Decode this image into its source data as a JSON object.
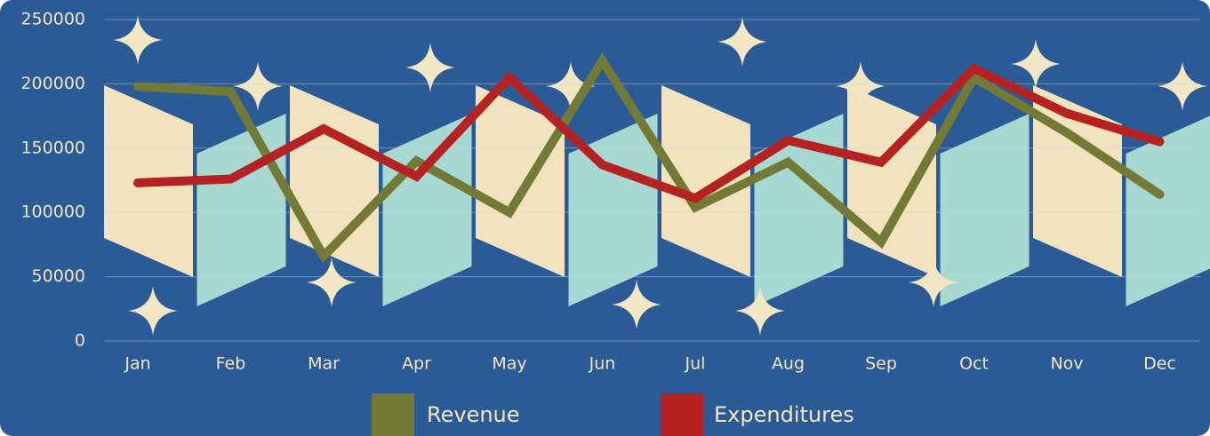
{
  "chart_data": {
    "type": "line",
    "categories": [
      "Jan",
      "Feb",
      "Mar",
      "Apr",
      "May",
      "Jun",
      "Jul",
      "Aug",
      "Sep",
      "Oct",
      "Nov",
      "Dec"
    ],
    "series": [
      {
        "name": "Revenue",
        "color": "#727a36",
        "values": [
          198000,
          194000,
          66000,
          140000,
          100000,
          218000,
          104000,
          139000,
          77000,
          205000,
          162000,
          114000
        ]
      },
      {
        "name": "Expenditures",
        "color": "#b42322",
        "values": [
          123000,
          126000,
          165000,
          128000,
          205000,
          137000,
          111000,
          156000,
          139000,
          212000,
          177000,
          155000
        ]
      }
    ],
    "ylim": [
      0,
      250000
    ],
    "yticks": [
      0,
      50000,
      100000,
      150000,
      200000,
      250000
    ],
    "grid": true
  }
}
